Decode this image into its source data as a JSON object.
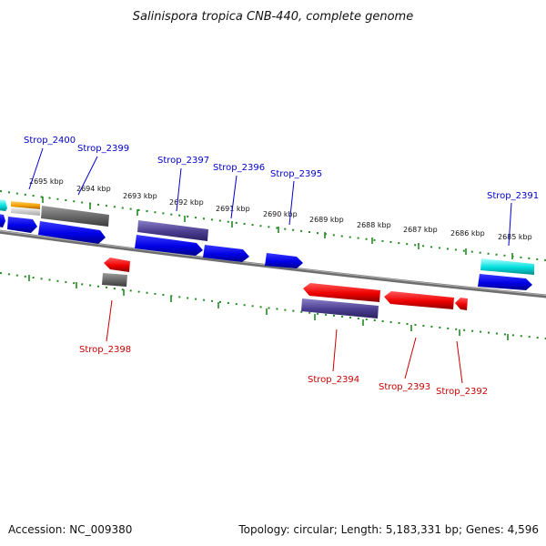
{
  "title": "Salinispora tropica CNB-440, complete genome",
  "footer": {
    "accession": "Accession: NC_009380",
    "summary": "Topology: circular; Length: 5,183,331 bp; Genes: 4,596"
  },
  "ticks": [
    "2695 kbp",
    "2694 kbp",
    "2693 kbp",
    "2692 kbp",
    "2691 kbp",
    "2690 kbp",
    "2689 kbp",
    "2688 kbp",
    "2687 kbp",
    "2686 kbp",
    "2685 kbp"
  ],
  "labels": {
    "forward": [
      "Strop_2400",
      "Strop_2399",
      "Strop_2397",
      "Strop_2396",
      "Strop_2395",
      "Strop_2391"
    ],
    "reverse": [
      "Strop_2398",
      "Strop_2394",
      "Strop_2393",
      "Strop_2392"
    ]
  },
  "colors": {
    "forward_label": "#0000cc",
    "reverse_label": "#cc0000",
    "backbone": "#808080",
    "tick": "#228b22",
    "cds_forward": "#0000ee",
    "cds_reverse": "#ee0000",
    "gene": "#555555",
    "rna": "#4a3d8f",
    "trna": "#00d0d0",
    "misc": "#f5a000"
  }
}
